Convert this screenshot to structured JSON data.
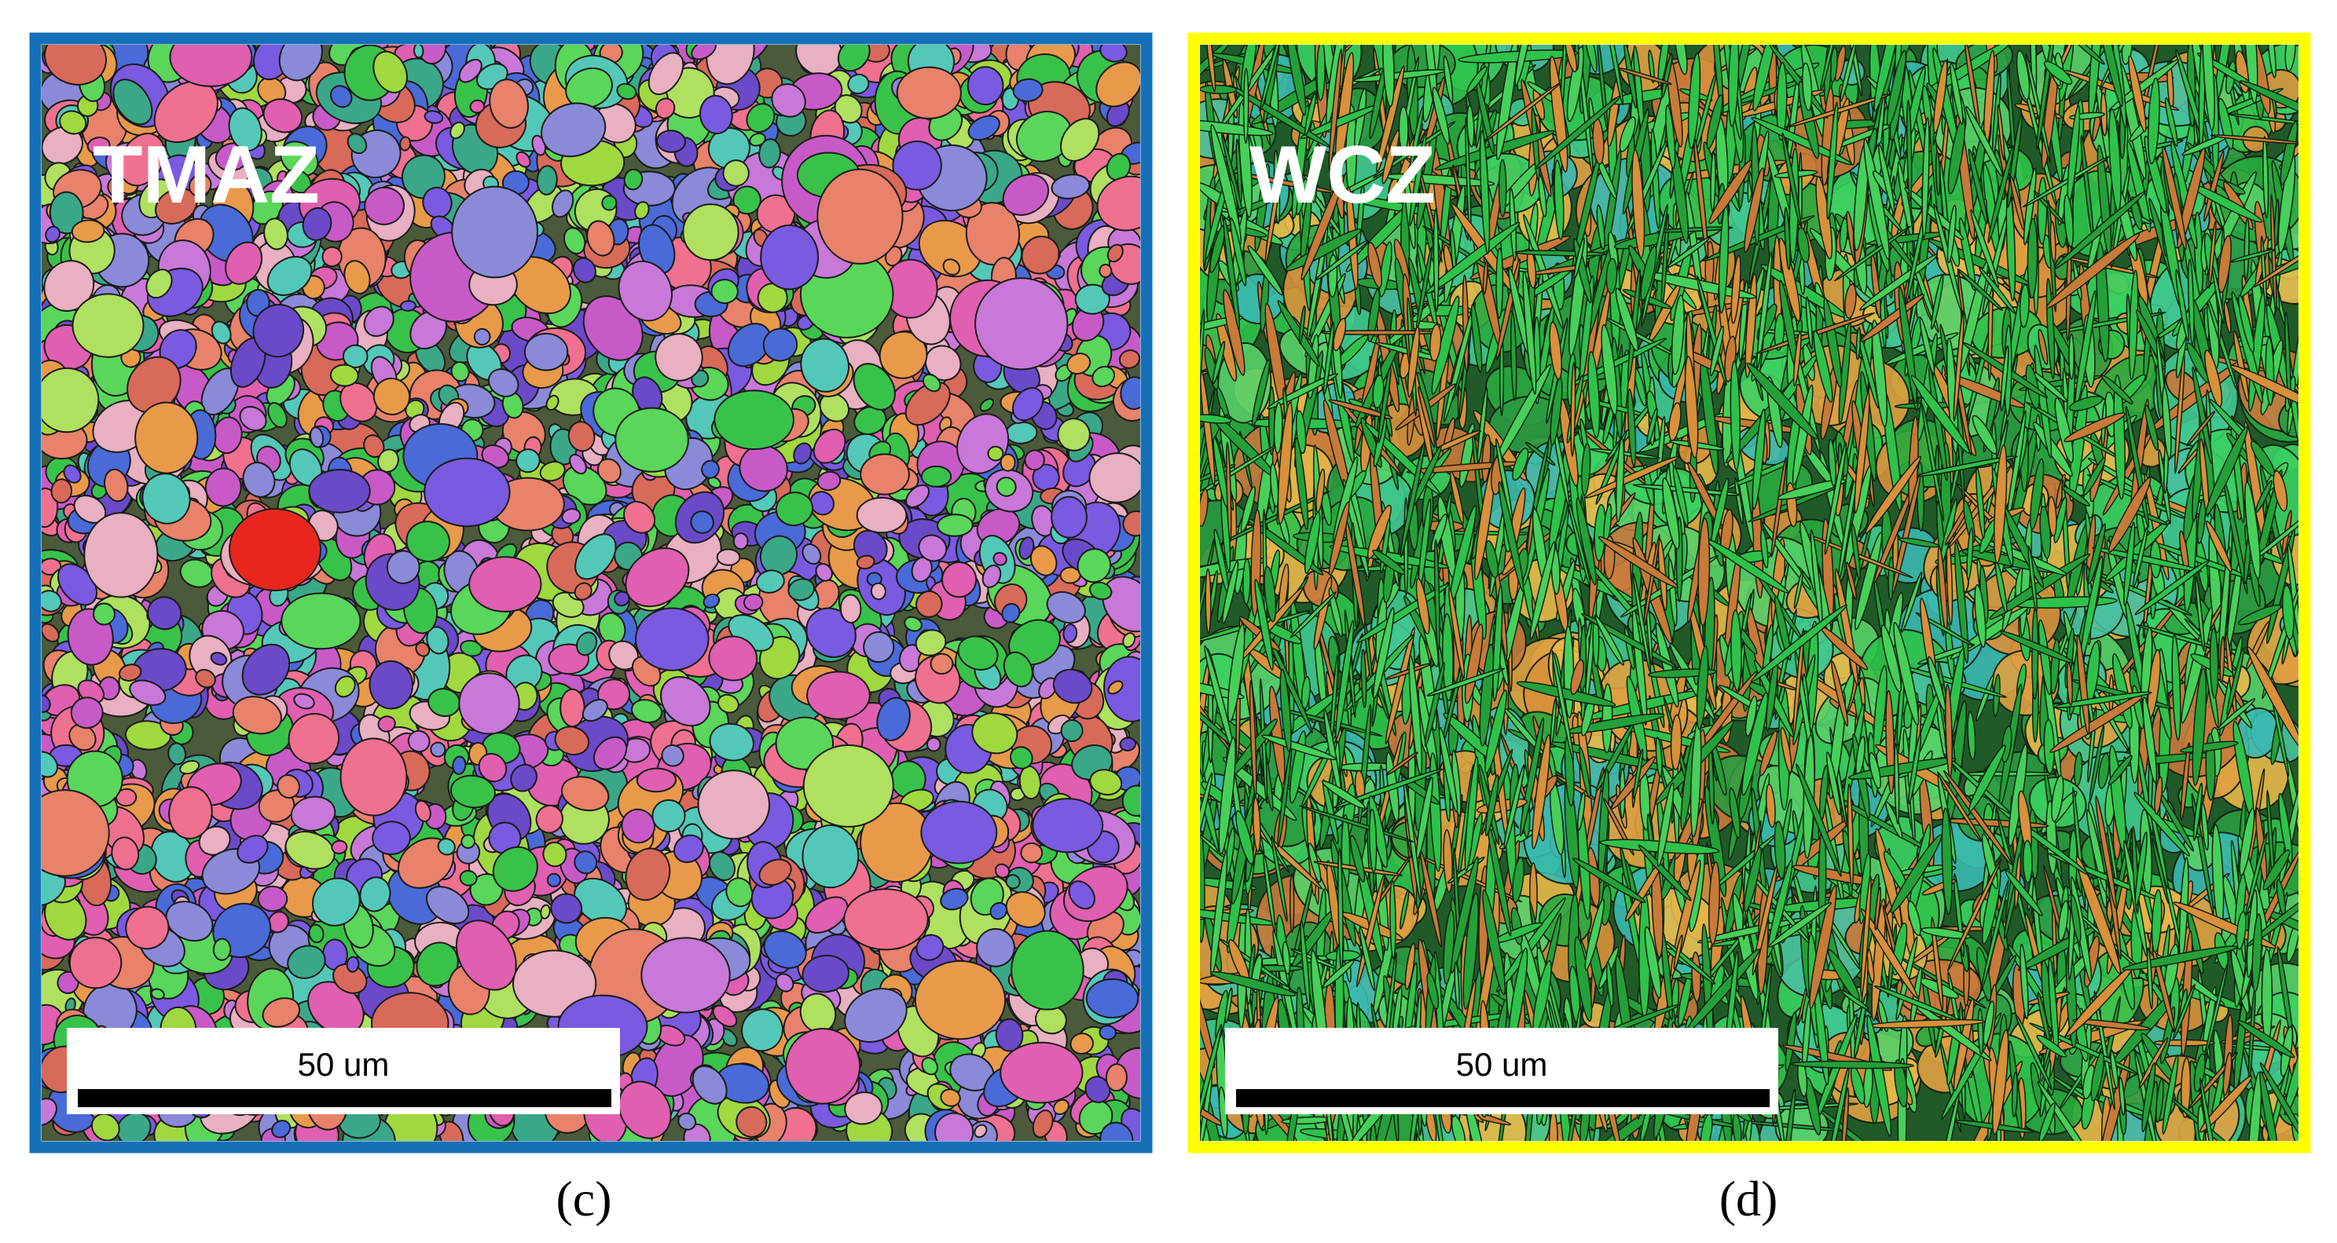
{
  "panels": [
    {
      "label": "TMAZ",
      "scale_bar": "50 um",
      "caption": "(c)"
    },
    {
      "label": "WCZ",
      "scale_bar": "50 um",
      "caption": "(d)"
    }
  ]
}
